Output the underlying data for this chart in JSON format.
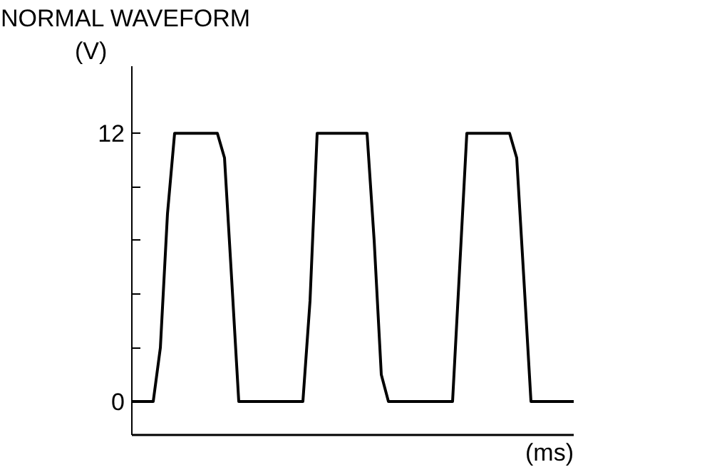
{
  "chart_data": {
    "type": "line",
    "title": "NORMAL WAVEFORM",
    "xlabel": "(ms)",
    "ylabel": "(V)",
    "categories": [
      null,
      null,
      null,
      null,
      null,
      null,
      null,
      null,
      null,
      null,
      null,
      null,
      null,
      null,
      null,
      null,
      null,
      null,
      null,
      null,
      null,
      null,
      null,
      null,
      null,
      null,
      null,
      null,
      null,
      null,
      null,
      null,
      null,
      null,
      null,
      null,
      null,
      null,
      null,
      null,
      null,
      null,
      null,
      null,
      null,
      null,
      null,
      null,
      null,
      null,
      null,
      null,
      null,
      null,
      null,
      null,
      null,
      null,
      null,
      null,
      null,
      null,
      null
    ],
    "series": [
      {
        "color": "#000000",
        "values": [
          0,
          0,
          0,
          0,
          2.4,
          8.4,
          12,
          12,
          12,
          12,
          12,
          12,
          12,
          10.9,
          5.5,
          0,
          0,
          0,
          0,
          0,
          0,
          0,
          0,
          0,
          0,
          4.5,
          12,
          12,
          12,
          12,
          12,
          12,
          12,
          12,
          7.2,
          1.2,
          0,
          0,
          0,
          0,
          0,
          0,
          0,
          0,
          0,
          0,
          6,
          12,
          12,
          12,
          12,
          12,
          12,
          12,
          10.9,
          5.5,
          0,
          0,
          0,
          0,
          0,
          0,
          0
        ]
      }
    ],
    "ylim": [
      -1.5,
      15
    ],
    "yticks": [
      0,
      {
        "value": 2.4,
        "label": null
      },
      {
        "value": 4.8,
        "label": null
      },
      {
        "value": 7.2,
        "label": null
      },
      {
        "value": 9.6,
        "label": null
      },
      12
    ],
    "grid": false,
    "marker": "none",
    "line_style": "solid"
  }
}
